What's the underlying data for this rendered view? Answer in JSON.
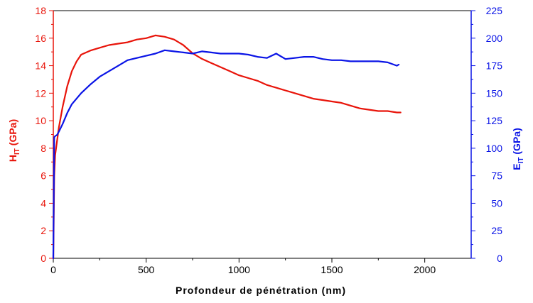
{
  "chart_data": {
    "type": "line",
    "xlabel": "Profondeur de pénétration (nm)",
    "ylabel_left": {
      "main": "H",
      "sub": "IT",
      "suffix": " (GPa)"
    },
    "ylabel_right": {
      "main": "E",
      "sub": "IT",
      "suffix": " (GPa)"
    },
    "xlim": [
      0,
      2250
    ],
    "ylim_left": [
      0,
      18
    ],
    "ylim_right": [
      0,
      225
    ],
    "xticks": [
      "0",
      "500",
      "1000",
      "1500",
      "2000"
    ],
    "yticks_left": [
      "0",
      "2",
      "4",
      "6",
      "8",
      "10",
      "12",
      "14",
      "16",
      "18"
    ],
    "yticks_right": [
      "0",
      "25",
      "50",
      "75",
      "100",
      "125",
      "150",
      "175",
      "200",
      "225"
    ],
    "grid": false,
    "colors": {
      "left": "#e8140a",
      "right": "#0a14e6",
      "frame": "#000000"
    },
    "series": [
      {
        "axis": "left",
        "color": "#e8140a",
        "x": [
          5,
          10,
          20,
          30,
          50,
          75,
          100,
          125,
          150,
          200,
          250,
          300,
          350,
          400,
          450,
          500,
          550,
          600,
          650,
          700,
          750,
          800,
          850,
          900,
          950,
          1000,
          1050,
          1100,
          1150,
          1200,
          1250,
          1300,
          1350,
          1400,
          1450,
          1500,
          1550,
          1600,
          1650,
          1700,
          1750,
          1800,
          1850,
          1870
        ],
        "y": [
          6.0,
          7.5,
          8.5,
          9.5,
          11.0,
          12.5,
          13.6,
          14.3,
          14.8,
          15.1,
          15.3,
          15.5,
          15.6,
          15.7,
          15.9,
          16.0,
          16.2,
          16.1,
          15.9,
          15.5,
          14.9,
          14.5,
          14.2,
          13.9,
          13.6,
          13.3,
          13.1,
          12.9,
          12.6,
          12.4,
          12.2,
          12.0,
          11.8,
          11.6,
          11.5,
          11.4,
          11.3,
          11.1,
          10.9,
          10.8,
          10.7,
          10.7,
          10.6,
          10.6
        ]
      },
      {
        "axis": "right",
        "color": "#0a14e6",
        "x": [
          5,
          10,
          20,
          30,
          50,
          75,
          100,
          150,
          200,
          250,
          300,
          350,
          400,
          450,
          500,
          550,
          600,
          650,
          700,
          750,
          800,
          850,
          900,
          950,
          1000,
          1050,
          1100,
          1150,
          1200,
          1250,
          1300,
          1350,
          1400,
          1450,
          1500,
          1550,
          1600,
          1650,
          1700,
          1750,
          1800,
          1850,
          1860
        ],
        "y": [
          110,
          111,
          112,
          115,
          122,
          132,
          140,
          150,
          158,
          165,
          170,
          175,
          180,
          182,
          184,
          186,
          189,
          188,
          187,
          186,
          188,
          187,
          186,
          186,
          186,
          185,
          183,
          182,
          186,
          181,
          182,
          183,
          183,
          181,
          180,
          180,
          179,
          179,
          179,
          179,
          178,
          175,
          176
        ]
      }
    ]
  }
}
